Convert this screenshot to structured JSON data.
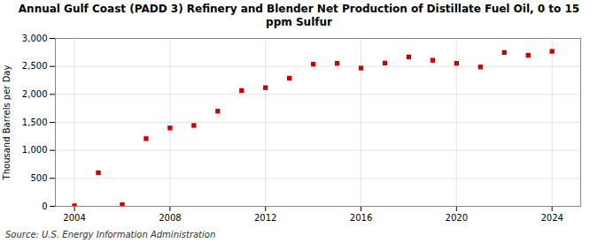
{
  "chart_data": {
    "type": "scatter",
    "title": "Annual Gulf Coast (PADD 3) Refinery and Blender Net Production of Distillate Fuel Oil, 0 to 15\nppm Sulfur",
    "ylabel": "Thousand Barrels per Day",
    "source": "Source: U.S. Energy Information Administration",
    "x": [
      2004,
      2005,
      2006,
      2007,
      2008,
      2009,
      2010,
      2011,
      2012,
      2013,
      2014,
      2015,
      2016,
      2017,
      2018,
      2019,
      2020,
      2021,
      2022,
      2023,
      2024
    ],
    "values": [
      10,
      600,
      30,
      1210,
      1400,
      1445,
      1700,
      2070,
      2120,
      2290,
      2540,
      2555,
      2470,
      2560,
      2670,
      2610,
      2555,
      2490,
      2750,
      2700,
      2770
    ],
    "color": "#cc0000",
    "marker": "square",
    "xlim": [
      2003.2,
      2025.2
    ],
    "xticks": [
      2004,
      2008,
      2012,
      2016,
      2020,
      2024
    ],
    "ylim": [
      0,
      3000
    ],
    "yticks": [
      0,
      500,
      {
        "value": 1000,
        "label": "1,000"
      },
      {
        "value": 1500,
        "label": "1,500"
      },
      {
        "value": 2000,
        "label": "2,000"
      },
      {
        "value": 2500,
        "label": "2,500"
      },
      {
        "value": 3000,
        "label": "3,000"
      }
    ],
    "grid": true
  }
}
